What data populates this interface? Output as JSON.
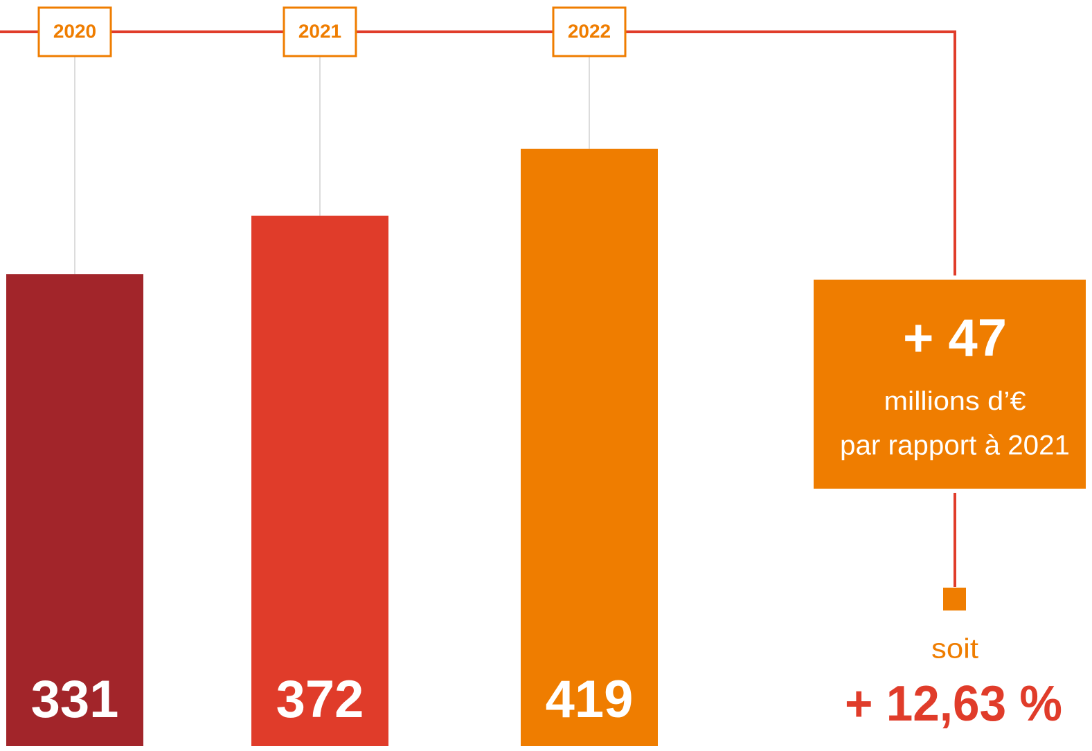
{
  "chart_data": {
    "type": "bar",
    "categories": [
      "2020",
      "2021",
      "2022"
    ],
    "values": [
      331,
      372,
      419
    ],
    "colors": [
      "#a2252a",
      "#e03c2a",
      "#ef7d00"
    ],
    "annotations": [
      "+ 47",
      "millions d’€",
      "par rapport à 2021",
      "soit",
      "+ 12,63 %"
    ]
  }
}
